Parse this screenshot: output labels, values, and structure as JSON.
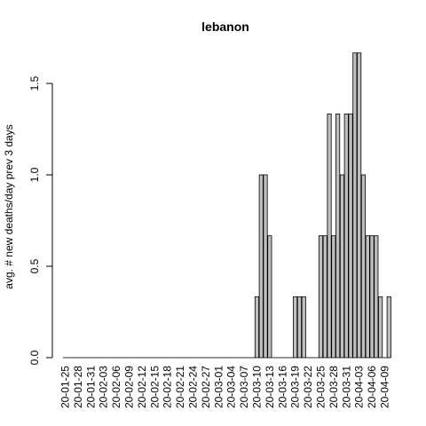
{
  "chart_data": {
    "type": "bar",
    "title": "lebanon",
    "ylabel": "avg. # new deaths/day prev  3  days",
    "xlabel": "",
    "ylim": [
      0,
      1.8
    ],
    "yticks": [
      "0.0",
      "0.5",
      "1.0",
      "1.5"
    ],
    "bar_color": "#bebebe",
    "categories": [
      "20-01-25",
      "20-01-26",
      "20-01-27",
      "20-01-28",
      "20-01-29",
      "20-01-30",
      "20-01-31",
      "20-02-01",
      "20-02-02",
      "20-02-03",
      "20-02-04",
      "20-02-05",
      "20-02-06",
      "20-02-07",
      "20-02-08",
      "20-02-09",
      "20-02-10",
      "20-02-11",
      "20-02-12",
      "20-02-13",
      "20-02-14",
      "20-02-15",
      "20-02-16",
      "20-02-17",
      "20-02-18",
      "20-02-19",
      "20-02-20",
      "20-02-21",
      "20-02-22",
      "20-02-23",
      "20-02-24",
      "20-02-25",
      "20-02-26",
      "20-02-27",
      "20-02-28",
      "20-02-29",
      "20-03-01",
      "20-03-02",
      "20-03-03",
      "20-03-04",
      "20-03-05",
      "20-03-06",
      "20-03-07",
      "20-03-08",
      "20-03-09",
      "20-03-10",
      "20-03-11",
      "20-03-12",
      "20-03-13",
      "20-03-14",
      "20-03-15",
      "20-03-16",
      "20-03-17",
      "20-03-18",
      "20-03-19",
      "20-03-20",
      "20-03-21",
      "20-03-22",
      "20-03-23",
      "20-03-24",
      "20-03-25",
      "20-03-26",
      "20-03-27",
      "20-03-28",
      "20-03-29",
      "20-03-30",
      "20-03-31",
      "20-04-01",
      "20-04-02",
      "20-04-03",
      "20-04-04",
      "20-04-05",
      "20-04-06",
      "20-04-07",
      "20-04-08",
      "20-04-09",
      "20-04-10"
    ],
    "values": [
      0,
      0,
      0,
      0,
      0,
      0,
      0,
      0,
      0,
      0,
      0,
      0,
      0,
      0,
      0,
      0,
      0,
      0,
      0,
      0,
      0,
      0,
      0,
      0,
      0,
      0,
      0,
      0,
      0,
      0,
      0,
      0,
      0,
      0,
      0,
      0,
      0,
      0,
      0,
      0,
      0,
      0,
      0,
      0,
      0,
      0.3333,
      1,
      1,
      0.6667,
      0,
      0,
      0,
      0,
      0,
      0.3333,
      0.3333,
      0.3333,
      0,
      0,
      0,
      0.6667,
      0.6667,
      1.3333,
      0.6667,
      1.3333,
      1,
      1.3333,
      1.3333,
      1.6667,
      1.6667,
      1,
      0.6667,
      0.6667,
      0.6667,
      0.3333,
      0,
      0.3333
    ],
    "x_tick_labels": [
      "20-01-25",
      "20-01-28",
      "20-01-31",
      "20-02-03",
      "20-02-06",
      "20-02-09",
      "20-02-12",
      "20-02-15",
      "20-02-18",
      "20-02-21",
      "20-02-24",
      "20-02-27",
      "20-03-01",
      "20-03-04",
      "20-03-07",
      "20-03-10",
      "20-03-13",
      "20-03-16",
      "20-03-19",
      "20-03-22",
      "20-03-25",
      "20-03-28",
      "20-03-31",
      "20-04-03",
      "20-04-06",
      "20-04-09"
    ]
  }
}
